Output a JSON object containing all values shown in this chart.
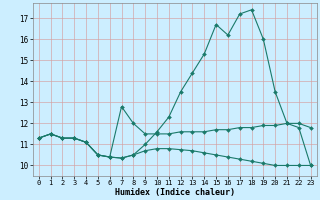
{
  "xlabel": "Humidex (Indice chaleur)",
  "bg_color": "#cceeff",
  "grid_color": "#d4a0a0",
  "line_color": "#1a7a6a",
  "xlim": [
    -0.5,
    23.5
  ],
  "ylim": [
    9.5,
    17.7
  ],
  "xticks": [
    0,
    1,
    2,
    3,
    4,
    5,
    6,
    7,
    8,
    9,
    10,
    11,
    12,
    13,
    14,
    15,
    16,
    17,
    18,
    19,
    20,
    21,
    22,
    23
  ],
  "yticks": [
    10,
    11,
    12,
    13,
    14,
    15,
    16,
    17
  ],
  "series": [
    {
      "x": [
        0,
        1,
        2,
        3,
        4,
        5,
        6,
        7,
        8,
        9,
        10,
        11,
        12,
        13,
        14,
        15,
        16,
        17,
        18,
        19,
        20,
        21,
        22,
        23
      ],
      "y": [
        11.3,
        11.5,
        11.3,
        11.3,
        11.1,
        10.5,
        10.4,
        10.35,
        10.5,
        11.0,
        11.6,
        12.3,
        13.5,
        14.4,
        15.3,
        16.7,
        16.2,
        17.2,
        17.4,
        16.0,
        13.5,
        12.0,
        11.8,
        10.0
      ]
    },
    {
      "x": [
        0,
        1,
        2,
        3,
        4,
        5,
        6,
        7,
        8,
        9,
        10,
        11,
        12,
        13,
        14,
        15,
        16,
        17,
        18,
        19,
        20,
        21,
        22,
        23
      ],
      "y": [
        11.3,
        11.5,
        11.3,
        11.3,
        11.1,
        10.5,
        10.4,
        12.8,
        12.0,
        11.5,
        11.5,
        11.5,
        11.6,
        11.6,
        11.6,
        11.7,
        11.7,
        11.8,
        11.8,
        11.9,
        11.9,
        12.0,
        12.0,
        11.8
      ]
    },
    {
      "x": [
        0,
        1,
        2,
        3,
        4,
        5,
        6,
        7,
        8,
        9,
        10,
        11,
        12,
        13,
        14,
        15,
        16,
        17,
        18,
        19,
        20,
        21,
        22,
        23
      ],
      "y": [
        11.3,
        11.5,
        11.3,
        11.3,
        11.1,
        10.5,
        10.4,
        10.35,
        10.5,
        10.7,
        10.8,
        10.8,
        10.75,
        10.7,
        10.6,
        10.5,
        10.4,
        10.3,
        10.2,
        10.1,
        10.0,
        10.0,
        10.0,
        10.0
      ]
    }
  ]
}
